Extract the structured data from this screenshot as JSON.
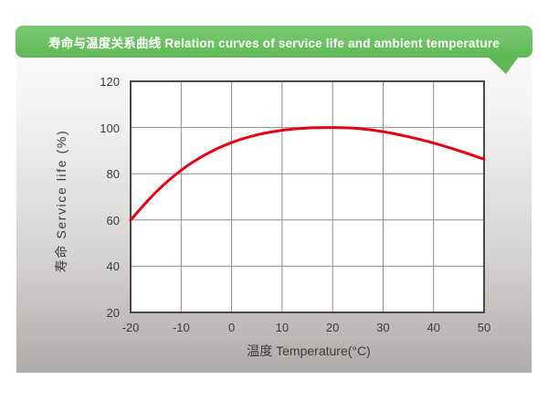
{
  "banner": {
    "title": "寿命与温度关系曲线 Relation curves of service life and ambient temperature",
    "bg_color": "#6cc163",
    "text_color": "#ffffff"
  },
  "chart_data": {
    "type": "line",
    "title": "寿命与温度关系曲线 Relation curves of service life and ambient temperature",
    "xlabel": "温度 Temperature(°C)",
    "ylabel": "寿命 Service life (%)",
    "xlim": [
      -20,
      50
    ],
    "ylim": [
      20,
      120
    ],
    "xticks": [
      -20,
      -10,
      0,
      10,
      20,
      30,
      40,
      50
    ],
    "yticks": [
      20,
      40,
      60,
      80,
      100,
      120
    ],
    "grid": true,
    "legend": "none",
    "line_color": "#e60012",
    "grid_color": "#8d8b8a",
    "border_color": "#4b4948",
    "plot_bg_color": "#ffffff",
    "series": [
      {
        "name": "service-life-curve",
        "x": [
          -20,
          -15,
          -10,
          -5,
          0,
          5,
          10,
          15,
          20,
          25,
          30,
          35,
          40,
          45,
          50
        ],
        "y": [
          60,
          72,
          81.5,
          88.5,
          93.5,
          96.8,
          98.8,
          99.8,
          100,
          99.6,
          98.2,
          96,
          93.3,
          90,
          86.3
        ]
      }
    ]
  }
}
